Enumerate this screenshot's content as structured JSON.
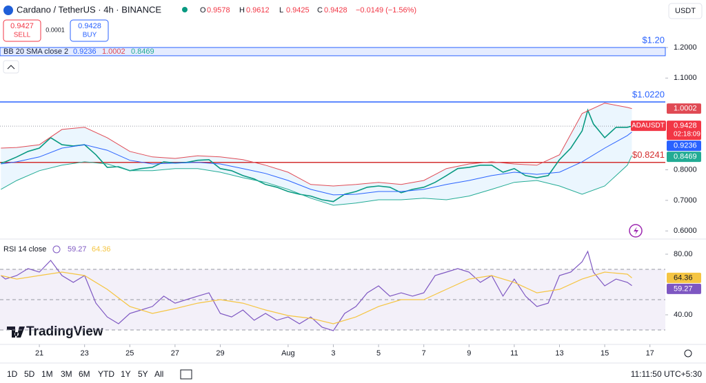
{
  "header": {
    "symbol": "Cardano / TetherUS · 4h · BINANCE",
    "ohlc": [
      {
        "label": "O",
        "value": 0.9578
      },
      {
        "label": "H",
        "value": 0.9612
      },
      {
        "label": "L",
        "value": 0.9425
      },
      {
        "label": "C",
        "value": 0.9428
      }
    ],
    "change": "−0.0149 (−1.56%)",
    "sell": {
      "price": 0.9427,
      "label": "SELL"
    },
    "spread": 0.0001,
    "buy": {
      "price": 0.9428,
      "label": "BUY"
    },
    "currency": "USDT"
  },
  "chart_data": [
    {
      "type": "line",
      "indicator": "BB 20 SMA close 2",
      "symbol_tag": "ADAUSDT",
      "countdown": "02:18:09",
      "xlim": [
        19.26,
        48.68
      ],
      "ylim": [
        0.578,
        1.299
      ],
      "yticks": [
        {
          "value": 1.2,
          "label": "1.2000"
        },
        {
          "value": 1.1,
          "label": "1.1000"
        },
        {
          "value": 0.8,
          "label": "0.8000"
        },
        {
          "value": 0.7,
          "label": "0.7000"
        },
        {
          "value": 0.6,
          "label": "0.6000"
        }
      ],
      "levels": [
        {
          "value": 1.2,
          "label": "$1.20",
          "color": "#2962ff",
          "style": "zone"
        },
        {
          "value": 1.022,
          "label": "$1.0220",
          "color": "#2962ff",
          "style": "line"
        },
        {
          "value": 0.8241,
          "label": "$0.8241",
          "color": "#d32f2f",
          "style": "line"
        }
      ],
      "series": [
        {
          "name": "ADAUSDT",
          "color": "#f23645",
          "line_color": "#089981",
          "x": [
            19.3,
            19.5,
            20,
            20.5,
            21,
            21.5,
            22,
            22.5,
            23,
            23.5,
            24,
            24.5,
            25,
            25.5,
            26,
            26.5,
            27,
            27.5,
            28,
            28.5,
            29,
            29.5,
            30,
            30.5,
            31,
            31.5,
            32,
            32.5,
            33,
            33.5,
            34,
            34.5,
            35,
            35.5,
            36,
            36.5,
            37,
            37.5,
            38,
            38.5,
            39,
            39.5,
            40,
            40.5,
            41,
            41.5,
            42,
            42.5,
            43,
            43.5,
            44,
            44.5,
            45,
            45.25,
            45.5,
            46,
            46.5,
            47,
            47.2
          ],
          "values": [
            0.822,
            0.826,
            0.842,
            0.86,
            0.871,
            0.905,
            0.882,
            0.878,
            0.882,
            0.849,
            0.808,
            0.81,
            0.797,
            0.804,
            0.808,
            0.826,
            0.822,
            0.824,
            0.831,
            0.833,
            0.804,
            0.797,
            0.781,
            0.77,
            0.752,
            0.743,
            0.729,
            0.72,
            0.714,
            0.702,
            0.696,
            0.72,
            0.729,
            0.743,
            0.747,
            0.743,
            0.725,
            0.736,
            0.743,
            0.759,
            0.781,
            0.804,
            0.808,
            0.815,
            0.815,
            0.792,
            0.804,
            0.781,
            0.774,
            0.781,
            0.833,
            0.871,
            0.927,
            0.995,
            0.95,
            0.905,
            0.939,
            0.939,
            0.9428
          ]
        },
        {
          "color": "#2962ff",
          "x": [
            19.3,
            20,
            21,
            22,
            23,
            24,
            25,
            26,
            27,
            28,
            29,
            30,
            31,
            32,
            33,
            34,
            35,
            36,
            37,
            38,
            39,
            40,
            41,
            42,
            43,
            44,
            45,
            46,
            47,
            47.2
          ],
          "values": [
            0.819,
            0.826,
            0.842,
            0.871,
            0.882,
            0.864,
            0.831,
            0.819,
            0.822,
            0.824,
            0.819,
            0.804,
            0.788,
            0.765,
            0.736,
            0.718,
            0.72,
            0.729,
            0.729,
            0.736,
            0.752,
            0.765,
            0.781,
            0.792,
            0.785,
            0.792,
            0.826,
            0.871,
            0.912,
            0.9236
          ]
        },
        {
          "color": "#e04a54",
          "x": [
            19.3,
            20,
            21,
            22,
            23,
            24,
            25,
            26,
            27,
            28,
            29,
            30,
            31,
            32,
            33,
            34,
            35,
            36,
            37,
            38,
            39,
            40,
            41,
            42,
            43,
            44,
            45,
            46,
            47,
            47.2
          ],
          "values": [
            0.871,
            0.873,
            0.882,
            0.932,
            0.939,
            0.905,
            0.86,
            0.842,
            0.837,
            0.846,
            0.842,
            0.833,
            0.815,
            0.792,
            0.752,
            0.747,
            0.752,
            0.759,
            0.752,
            0.765,
            0.804,
            0.819,
            0.826,
            0.819,
            0.815,
            0.849,
            0.984,
            1.018,
            1.004,
            1.0002
          ]
        },
        {
          "color": "#22ab94",
          "x": [
            19.3,
            20,
            21,
            22,
            23,
            24,
            25,
            26,
            27,
            28,
            29,
            30,
            31,
            32,
            33,
            34,
            35,
            36,
            37,
            38,
            39,
            40,
            41,
            42,
            43,
            44,
            45,
            46,
            47,
            47.2
          ],
          "values": [
            0.736,
            0.765,
            0.797,
            0.815,
            0.826,
            0.819,
            0.797,
            0.797,
            0.804,
            0.804,
            0.792,
            0.774,
            0.759,
            0.736,
            0.707,
            0.684,
            0.691,
            0.702,
            0.702,
            0.707,
            0.702,
            0.714,
            0.736,
            0.759,
            0.765,
            0.747,
            0.72,
            0.747,
            0.815,
            0.8469
          ]
        }
      ]
    },
    {
      "type": "line",
      "indicator": "RSI 14 close",
      "xlim": [
        19.26,
        48.68
      ],
      "ylim": [
        20.45,
        88.64
      ],
      "yticks": [
        {
          "value": 80,
          "label": "80.00"
        },
        {
          "value": 40,
          "label": "40.00"
        }
      ],
      "hlines": [
        70,
        50,
        30
      ],
      "xticks": [
        21,
        23,
        25,
        27,
        29,
        {
          "value": 32,
          "label": "Aug"
        },
        {
          "value": 34,
          "label": "3"
        },
        {
          "value": 36,
          "label": "5"
        },
        {
          "value": 38,
          "label": "7"
        },
        {
          "value": 40,
          "label": "9"
        },
        {
          "value": 42,
          "label": "11"
        },
        {
          "value": 44,
          "label": "13"
        },
        {
          "value": 46,
          "label": "15"
        },
        {
          "value": 48,
          "label": "17"
        }
      ],
      "series": [
        {
          "color": "#7e57c2",
          "x": [
            19.3,
            19.5,
            20,
            20.5,
            21,
            21.5,
            22,
            22.5,
            23,
            23.5,
            24,
            24.5,
            25,
            25.5,
            26,
            26.5,
            27,
            27.5,
            28,
            28.5,
            29,
            29.5,
            30,
            30.5,
            31,
            31.5,
            32,
            32.5,
            33,
            33.5,
            34,
            34.5,
            35,
            35.5,
            36,
            36.5,
            37,
            37.5,
            38,
            38.5,
            39,
            39.5,
            40,
            40.5,
            41,
            41.5,
            42,
            42.5,
            43,
            43.5,
            44,
            44.5,
            45,
            45.25,
            45.5,
            46,
            46.5,
            47,
            47.2
          ],
          "values": [
            65.9,
            63.6,
            65.9,
            70.5,
            68.2,
            75.9,
            65.9,
            61.4,
            65.9,
            47.7,
            38.6,
            34.1,
            40.9,
            43.2,
            45.5,
            52.3,
            47.7,
            50,
            52.3,
            54.5,
            40.9,
            38.6,
            43.2,
            36.4,
            40.9,
            36.4,
            38.6,
            34.1,
            38.6,
            31.8,
            29.5,
            40.9,
            45.5,
            54.5,
            59.1,
            52.3,
            54.5,
            52.3,
            54.5,
            65.9,
            68.2,
            70.5,
            68.2,
            61.4,
            65.9,
            52.3,
            63.6,
            52.3,
            45.5,
            47.7,
            65.9,
            68.2,
            75,
            81.8,
            68.2,
            59.1,
            63.6,
            61.4,
            59.27
          ]
        },
        {
          "color": "#f5c542",
          "x": [
            19.3,
            20,
            21,
            22,
            23,
            24,
            25,
            26,
            27,
            28,
            29,
            30,
            31,
            32,
            33,
            34,
            35,
            36,
            37,
            38,
            39,
            40,
            41,
            42,
            43,
            44,
            45,
            46,
            47,
            47.2
          ],
          "values": [
            65.9,
            63.6,
            65.9,
            68.2,
            65.9,
            56.8,
            45.5,
            40.9,
            44.1,
            47.7,
            50,
            47.7,
            43.2,
            39.5,
            37.7,
            34.1,
            38.6,
            45.5,
            50,
            50,
            56.8,
            63.6,
            65.9,
            61.4,
            54.5,
            56.8,
            63.6,
            68.2,
            66.8,
            64.36
          ]
        }
      ]
    }
  ],
  "watermark": "TradingView",
  "toolbar": {
    "ranges": [
      "1D",
      "5D",
      "1M",
      "3M",
      "6M",
      "YTD",
      "1Y",
      "5Y",
      "All"
    ],
    "clock": "11:11:50 UTC+5:30"
  }
}
